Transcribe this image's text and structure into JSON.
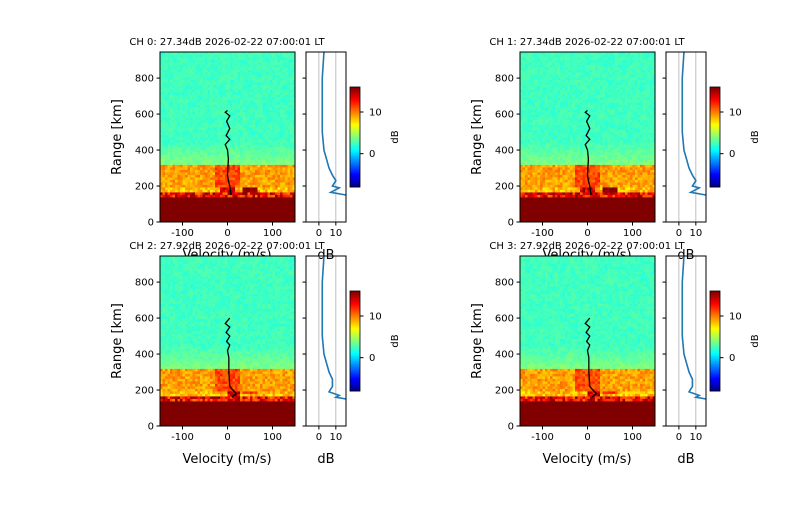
{
  "colormap": "jet",
  "common": {
    "xlabel": "Velocity (m/s)",
    "ylabel": "Range [km]",
    "profile_xlabel": "dB",
    "colorbar_label": "dB",
    "xlim": [
      -150,
      150
    ],
    "ylim": [
      0,
      945
    ],
    "xticks": [
      "-100",
      "0",
      "100"
    ],
    "yticks": [
      "0",
      "200",
      "400",
      "600",
      "800"
    ],
    "profile_xlim": [
      -7.6,
      16
    ],
    "profile_xticks": [
      "0",
      "10"
    ],
    "colorbar_range": [
      -8,
      16
    ],
    "colorbar_ticks": [
      "0",
      "10"
    ],
    "line_color": "#000000",
    "profile_color": "#1f77b4"
  },
  "chart_data": [
    {
      "type": "heatmap",
      "title": "CH 0: 27.34dB 2026-02-22 07:00:01 LT",
      "doppler_line": {
        "velocity": [
          8,
          5,
          2,
          0,
          2,
          0,
          -5,
          5,
          -3,
          5,
          -2,
          5,
          -5,
          0
        ],
        "range": [
          150,
          200,
          230,
          260,
          350,
          400,
          430,
          460,
          480,
          520,
          560,
          590,
          610,
          620
        ]
      },
      "profile": {
        "db": [
          16,
          7,
          12,
          8,
          10,
          8,
          6,
          3,
          2,
          2,
          2,
          3
        ],
        "range": [
          150,
          165,
          190,
          200,
          230,
          260,
          300,
          400,
          500,
          600,
          800,
          945
        ]
      },
      "echo_blob_velocity": 50
    },
    {
      "type": "heatmap",
      "title": "CH 1: 27.34dB 2026-02-22 07:00:01 LT",
      "doppler_line": {
        "velocity": [
          8,
          5,
          2,
          0,
          2,
          0,
          -5,
          5,
          -3,
          5,
          -2,
          5,
          -5,
          0
        ],
        "range": [
          150,
          200,
          230,
          260,
          350,
          400,
          430,
          460,
          480,
          520,
          560,
          590,
          610,
          620
        ]
      },
      "profile": {
        "db": [
          16,
          7,
          12,
          8,
          10,
          8,
          6,
          3,
          2,
          2,
          2,
          3
        ],
        "range": [
          150,
          165,
          190,
          200,
          230,
          260,
          300,
          400,
          500,
          600,
          800,
          945
        ]
      },
      "echo_blob_velocity": 50
    },
    {
      "type": "heatmap",
      "title": "CH 2: 27.92dB 2026-02-22 07:00:01 LT",
      "doppler_line": {
        "velocity": [
          10,
          20,
          12,
          5,
          3,
          3,
          0,
          5,
          -2,
          5,
          -3,
          5,
          -5,
          5
        ],
        "range": [
          160,
          180,
          200,
          220,
          300,
          380,
          420,
          450,
          470,
          500,
          520,
          550,
          570,
          600
        ]
      },
      "profile": {
        "db": [
          16,
          10,
          12,
          6,
          8,
          8,
          6,
          3,
          2,
          2,
          2,
          3
        ],
        "range": [
          150,
          160,
          170,
          190,
          220,
          260,
          300,
          400,
          500,
          600,
          800,
          945
        ]
      },
      "echo_blob_velocity": 50
    },
    {
      "type": "heatmap",
      "title": "CH 3: 27.92dB 2026-02-22 07:00:01 LT",
      "doppler_line": {
        "velocity": [
          10,
          20,
          12,
          5,
          3,
          3,
          0,
          5,
          -2,
          5,
          -3,
          5,
          -5,
          5
        ],
        "range": [
          160,
          180,
          200,
          220,
          300,
          380,
          420,
          450,
          470,
          500,
          520,
          550,
          570,
          600
        ]
      },
      "profile": {
        "db": [
          16,
          10,
          12,
          6,
          8,
          8,
          6,
          3,
          2,
          2,
          2,
          3
        ],
        "range": [
          150,
          160,
          170,
          190,
          220,
          260,
          300,
          400,
          500,
          600,
          800,
          945
        ]
      },
      "echo_blob_velocity": 50
    }
  ]
}
